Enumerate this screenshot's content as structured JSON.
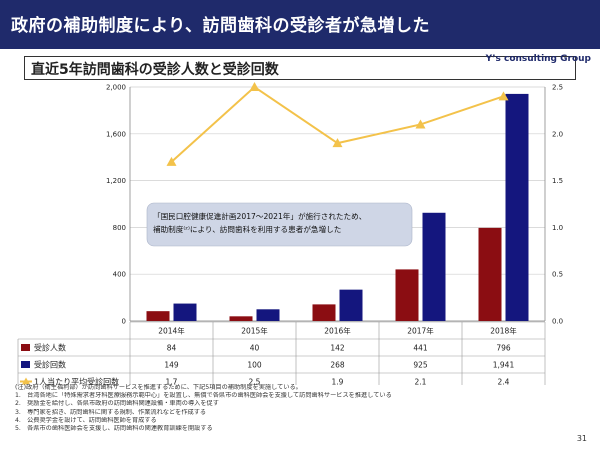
{
  "header": {
    "title": "政府の補助制度により、訪問歯科の受診者が急増した"
  },
  "subheader": {
    "title": "直近5年訪問歯科の受診人数と受診回数",
    "brand": "Y’s consulting Group"
  },
  "callout": {
    "line1": "「国民口腔健康促進計画2017～2021年」が施行されたため、",
    "line2": "補助制度⁽ᶻ⁾により、訪問歯科を利用する患者が急増した"
  },
  "chart_data": {
    "type": "bar",
    "categories": [
      "2014年",
      "2015年",
      "2016年",
      "2017年",
      "2018年"
    ],
    "series": [
      {
        "name": "受診人数",
        "kind": "bar",
        "axis": "left",
        "color": "#8b0d12",
        "values": [
          84,
          40,
          142,
          441,
          796
        ],
        "labels": [
          "84",
          "40",
          "142",
          "441",
          "796"
        ]
      },
      {
        "name": "受診回数",
        "kind": "bar",
        "axis": "left",
        "color": "#14167e",
        "values": [
          149,
          100,
          268,
          925,
          1941
        ],
        "labels": [
          "149",
          "100",
          "268",
          "925",
          "1,941"
        ]
      },
      {
        "name": "1人当たり平均受診回数",
        "kind": "line",
        "axis": "right",
        "color": "#f3c24a",
        "values": [
          1.7,
          2.5,
          1.9,
          2.1,
          2.4
        ],
        "labels": [
          "1.7",
          "2.5",
          "1.9",
          "2.1",
          "2.4"
        ]
      }
    ],
    "y_left": {
      "min": 0,
      "max": 2000,
      "ticks": [
        "0",
        "400",
        "800",
        "1,200",
        "1,600",
        "2,000"
      ]
    },
    "y_right": {
      "min": 0,
      "max": 2.5,
      "ticks": [
        "0.0",
        "0.5",
        "1.0",
        "1.5",
        "2.0",
        "2.5"
      ]
    },
    "grid": true,
    "legend": "table-below"
  },
  "notes": [
    "(注)政府（衛生福利部）が訪問歯科サービスを推進するために、下記5項目の補助制度を実施している。",
    "1.　台湾各地に「特殊需求者牙科医療服務示範中心」を設置し、無償で各県市の歯科医師会を支援して訪問歯科サービスを推進している",
    "2.　奨励金を給付し、各県市政府の訪問歯科関連設備・車両の導入を促す",
    "3.　専門家を招き、訪問歯科に関する規制、作業流れなどを作成する",
    "4.　公費奨学金を設けて、訪問歯科医師を育成する",
    "5.　各県市の歯科医師会を支援し、訪問歯科の関連教育訓練を開設する"
  ],
  "footer": {
    "page": "31"
  }
}
